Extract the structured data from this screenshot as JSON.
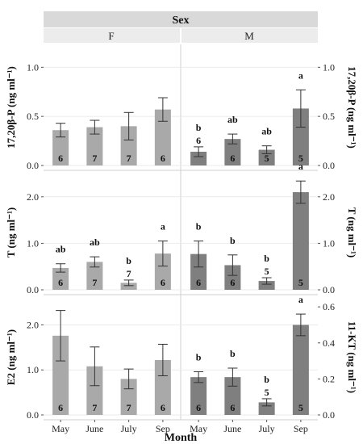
{
  "chart_data": {
    "type": "bar",
    "facet_header": "Sex",
    "facets": [
      "F",
      "M"
    ],
    "categories": [
      "May",
      "June",
      "July",
      "Sep"
    ],
    "xlabel": "Month",
    "colors": {
      "F": "#a9a9a9",
      "M": "#7f7f7f",
      "strip": "#d9d9d9",
      "grid": "#ebebeb"
    },
    "panels": [
      {
        "left_label": "17,20β-P (ng ml⁻¹)",
        "right_label": "17,20β-P (ng ml⁻¹)",
        "ylim": [
          0,
          1.2
        ],
        "ticks": [
          "0.0",
          "0.5",
          "1.0"
        ],
        "tick_values": [
          0,
          0.5,
          1.0
        ],
        "F": {
          "values": [
            0.36,
            0.39,
            0.4,
            0.57
          ],
          "errors": [
            0.07,
            0.07,
            0.14,
            0.12
          ],
          "n": [
            "6",
            "7",
            "7",
            "6"
          ],
          "letters": [
            "",
            "",
            "",
            ""
          ]
        },
        "M": {
          "values": [
            0.14,
            0.27,
            0.16,
            0.58
          ],
          "errors": [
            0.05,
            0.05,
            0.04,
            0.19
          ],
          "n": [
            "6",
            "6",
            "5",
            "5"
          ],
          "letters": [
            "b",
            "ab",
            "ab",
            "a"
          ]
        }
      },
      {
        "left_label": "T (ng ml⁻¹)",
        "right_label": "T (ng ml⁻¹)",
        "ylim": [
          0,
          2.5
        ],
        "ticks": [
          "0.0",
          "1.0",
          "2.0"
        ],
        "tick_values": [
          0,
          1.0,
          2.0
        ],
        "F": {
          "values": [
            0.47,
            0.6,
            0.15,
            0.78
          ],
          "errors": [
            0.09,
            0.11,
            0.06,
            0.27
          ],
          "n": [
            "6",
            "7",
            "7",
            "6"
          ],
          "letters": [
            "ab",
            "ab",
            "b",
            "a"
          ]
        },
        "M": {
          "values": [
            0.77,
            0.53,
            0.19,
            2.1
          ],
          "errors": [
            0.28,
            0.22,
            0.07,
            0.24
          ],
          "n": [
            "6",
            "6",
            "5",
            "5"
          ],
          "letters": [
            "b",
            "b",
            "b",
            "a"
          ]
        }
      },
      {
        "left_label": "E2 (ng ml⁻¹)",
        "right_label": "11-KT (ng ml⁻¹)",
        "ylim": [
          0,
          2.6
        ],
        "ticks": [
          "0.0",
          "1.0",
          "2.0"
        ],
        "tick_values": [
          0,
          1.0,
          2.0
        ],
        "right_ticks": [
          "0.0",
          "0.2",
          "0.4",
          "0.6"
        ],
        "right_tick_values": [
          0,
          0.2,
          0.4,
          0.6
        ],
        "right_ylim": [
          0,
          0.65
        ],
        "F": {
          "values": [
            1.76,
            1.08,
            0.8,
            1.22
          ],
          "errors": [
            0.56,
            0.43,
            0.22,
            0.35
          ],
          "n": [
            "6",
            "7",
            "7",
            "6"
          ],
          "letters": [
            "",
            "",
            "",
            ""
          ]
        },
        "M": {
          "values": [
            0.21,
            0.21,
            0.07,
            0.5
          ],
          "errors": [
            0.03,
            0.05,
            0.02,
            0.06
          ],
          "n": [
            "6",
            "6",
            "5",
            "5"
          ],
          "letters": [
            "b",
            "b",
            "b",
            "a"
          ],
          "axis": "right"
        }
      }
    ]
  }
}
